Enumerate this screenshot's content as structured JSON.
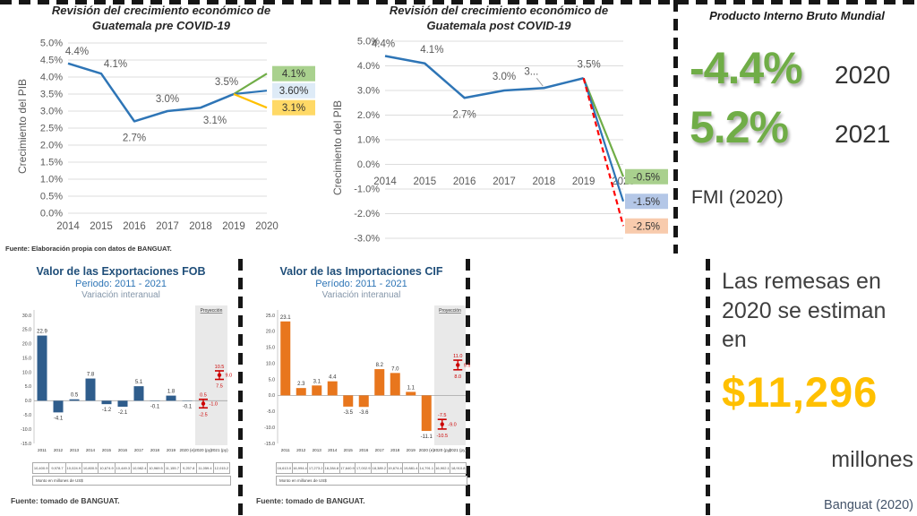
{
  "pib_mundial": {
    "title": "Producto Interno Bruto Mundial",
    "rows": [
      {
        "value": "-4.4%",
        "year": "2020"
      },
      {
        "value": "5.2%",
        "year": "2021"
      }
    ],
    "source": "FMI (2020)",
    "accent_green": "#70AD47"
  },
  "remesas": {
    "intro": "Las remesas en 2020 se estiman en",
    "amount": "$11,296",
    "unit": "millones",
    "source": "Banguat (2020)",
    "accent_gold": "#FFC000"
  },
  "chart_data": [
    {
      "type": "line",
      "title": "Revisión del crecimiento económico de Guatemala pre COVID-19",
      "title_lines": [
        "Revisión del crecimiento económico de",
        "Guatemala pre COVID-19"
      ],
      "ylabel": "Crecimiento del PIB",
      "categories": [
        "2014",
        "2015",
        "2016",
        "2017",
        "2018",
        "2019",
        "2020"
      ],
      "base_values": [
        4.4,
        4.1,
        2.7,
        3.0,
        3.1,
        3.5
      ],
      "point_labels": [
        "4.4%",
        "4.1%",
        "2.7%",
        "3.0%",
        "3.1%",
        "3.5%"
      ],
      "line_color": "#2E75B6",
      "branches": [
        {
          "value": 4.1,
          "label": "4.1%",
          "color": "#70AD47",
          "box": "#A9D18E",
          "dashed": false
        },
        {
          "value": 3.6,
          "label": "3.60%",
          "color": "#2E75B6",
          "box": "#DEEBF7",
          "dashed": false
        },
        {
          "value": 3.1,
          "label": "3.1%",
          "color": "#FFC000",
          "box": "#FFD966",
          "dashed": false
        }
      ],
      "ylim": [
        0,
        5
      ],
      "ytick_step": 0.5,
      "grid": true,
      "legend": "none",
      "source": "Fuente: Elaboración propia con datos de BANGUAT."
    },
    {
      "type": "line",
      "title": "Revisión del crecimiento económico de Guatemala post COVID-19",
      "title_lines": [
        "Revisión del crecimiento económico de",
        "Guatemala post COVID-19"
      ],
      "ylabel": "Crecimiento del PIB",
      "categories": [
        "2014",
        "2015",
        "2016",
        "2017",
        "2018",
        "2019",
        "2020"
      ],
      "base_values": [
        4.4,
        4.1,
        2.7,
        3.0,
        3.1,
        3.5
      ],
      "point_labels": [
        "4.4%",
        "4.1%",
        "2.7%",
        "3.0%",
        "3...",
        "3.5%"
      ],
      "line_color": "#2E75B6",
      "branches": [
        {
          "value": -0.5,
          "label": "-0.5%",
          "color": "#70AD47",
          "box": "#A9D08E",
          "dashed": false
        },
        {
          "value": -1.5,
          "label": "-1.5%",
          "color": "#2E75B6",
          "box": "#B4C7E7",
          "dashed": false
        },
        {
          "value": -2.5,
          "label": "-2.5%",
          "color": "#FF0000",
          "box": "#F8CBAD",
          "dashed": true
        }
      ],
      "ylim": [
        -3,
        5
      ],
      "ytick_step": 1,
      "grid": true,
      "legend": "none"
    },
    {
      "type": "bar",
      "title": "Valor de las Exportaciones FOB",
      "subtitle": "Periodo: 2011 - 2021",
      "subtitle2": "Variación interanual",
      "categories": [
        "2011",
        "2012",
        "2013",
        "2014",
        "2015",
        "2016",
        "2017",
        "2018",
        "2019",
        "2020 (e)",
        "2020 (py)",
        "2021 (py)"
      ],
      "values": [
        22.9,
        -4.1,
        0.5,
        7.8,
        -1.2,
        -2.1,
        5.1,
        -0.1,
        1.8,
        -0.1
      ],
      "value_labels": [
        "22.9",
        "-4.1",
        "0.5",
        "7.8",
        "-1.2",
        "-2.1",
        "5.1",
        "-0.1",
        "1.8",
        "-0.1"
      ],
      "bar_color": "#2F5D8C",
      "error_color": "#CC0000",
      "projection_label": "Proyección",
      "projections": [
        {
          "category": "2020 (py)",
          "high": 0.5,
          "mid": -1.0,
          "low": -2.5,
          "labels": [
            "0.5",
            "-1.0",
            "-2.5"
          ]
        },
        {
          "category": "2021 (py)",
          "high": 10.5,
          "mid": 9.0,
          "low": 7.5,
          "labels": [
            "10.5",
            "9.0",
            "7.5"
          ]
        }
      ],
      "ylim": [
        -15,
        30
      ],
      "ytick_step": 5,
      "table_values": [
        "10,400.9",
        "9,978.7",
        "10,024.9",
        "10,800.5",
        "10,674.9",
        "10,449.3",
        "10,982.4",
        "10,969.5",
        "11,155.7",
        "9,257.8",
        "11,059.4",
        "12,015.2"
      ],
      "table_note": "Monto en millones de US$",
      "source": "Fuente: tomado de BANGUAT."
    },
    {
      "type": "bar",
      "title": "Valor de las Importaciones CIF",
      "subtitle": "Período: 2011 - 2021",
      "subtitle2": "Variación interanual",
      "categories": [
        "2011",
        "2012",
        "2013",
        "2014",
        "2015",
        "2016",
        "2017",
        "2018",
        "2019",
        "2020 (e)",
        "2020 (py)",
        "2021 (py)"
      ],
      "values": [
        23.1,
        2.3,
        3.1,
        4.4,
        -3.5,
        -3.6,
        8.2,
        7.0,
        1.1,
        -11.1
      ],
      "value_labels": [
        "23.1",
        "2.3",
        "3.1",
        "4.4",
        "-3.5",
        "-3.6",
        "8.2",
        "7.0",
        "1.1",
        "-11.1"
      ],
      "bar_color": "#E8761D",
      "error_color": "#CC0000",
      "projection_label": "Proyección",
      "projections": [
        {
          "category": "2020 (py)",
          "high": -7.5,
          "mid": -9.0,
          "low": -10.5,
          "labels": [
            "-7.5",
            "-9.0",
            "-10.5"
          ]
        },
        {
          "category": "2021 (py)",
          "high": 11.0,
          "mid": 9.5,
          "low": 8.0,
          "labels": [
            "11.0",
            "9.5",
            "8.0"
          ]
        }
      ],
      "ylim": [
        -15,
        25
      ],
      "ytick_step": 5,
      "table_values": [
        "16,613.0",
        "16,994.4",
        "17,273.2",
        "18,284.8",
        "17,640.9",
        "17,002.9",
        "18,389.2",
        "19,674.4",
        "19,881.4",
        "14,791.1",
        "16,902.1",
        "18,910.8"
      ],
      "table_note": "Monto en millones de US$",
      "source": "Fuente: tomado de BANGUAT."
    }
  ]
}
